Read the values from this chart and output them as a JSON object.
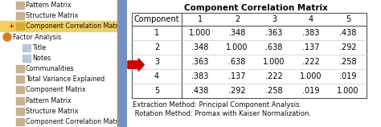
{
  "title": "Component Correlation Matrix",
  "col_headers": [
    "Component",
    "1",
    "2",
    "3",
    "4",
    "5"
  ],
  "row_labels": [
    "1",
    "2",
    "3",
    "4",
    "5"
  ],
  "table_data": [
    [
      "1.000",
      ".348",
      ".363",
      ".383",
      ".438"
    ],
    [
      ".348",
      "1.000",
      ".638",
      ".137",
      ".292"
    ],
    [
      ".363",
      ".638",
      "1.000",
      ".222",
      ".258"
    ],
    [
      ".383",
      ".137",
      ".222",
      "1.000",
      ".019"
    ],
    [
      ".438",
      ".292",
      ".258",
      ".019",
      "1.000"
    ]
  ],
  "footnote1": "Extraction Method: Principal Component Analysis.",
  "footnote2": " Rotation Method: Promax with Kaiser Normalization.",
  "title_fontsize": 7.5,
  "header_fontsize": 7,
  "cell_fontsize": 7,
  "footnote_fontsize": 6,
  "bg_color": "#ffffff",
  "left_panel_bg": "#ece9d8",
  "nav_items": [
    [
      "Pattern Matrix",
      2,
      false,
      false
    ],
    [
      "Structure Matrix",
      2,
      false,
      false
    ],
    [
      "Component Correlation Matrix",
      2,
      true,
      true
    ],
    [
      "Factor Analysis",
      0,
      false,
      false
    ],
    [
      "Title",
      3,
      false,
      false
    ],
    [
      "Notes",
      3,
      false,
      false
    ],
    [
      "Communalities",
      2,
      false,
      false
    ],
    [
      "Total Variance Explained",
      2,
      false,
      false
    ],
    [
      "Component Matrix",
      2,
      false,
      false
    ],
    [
      "Pattern Matrix",
      2,
      false,
      false
    ],
    [
      "Structure Matrix",
      2,
      false,
      false
    ],
    [
      "Component Correlation Matrix",
      2,
      false,
      false
    ]
  ],
  "arrow_color": "#cc0000",
  "icon_color_folder": "#c8b090",
  "icon_color_doc": "#b8c8d8",
  "icon_color_special": "#d4aa30",
  "icon_color_fa": "#d08020",
  "blue_bar_color": "#7090c8",
  "nav_fontsize": 5.8
}
